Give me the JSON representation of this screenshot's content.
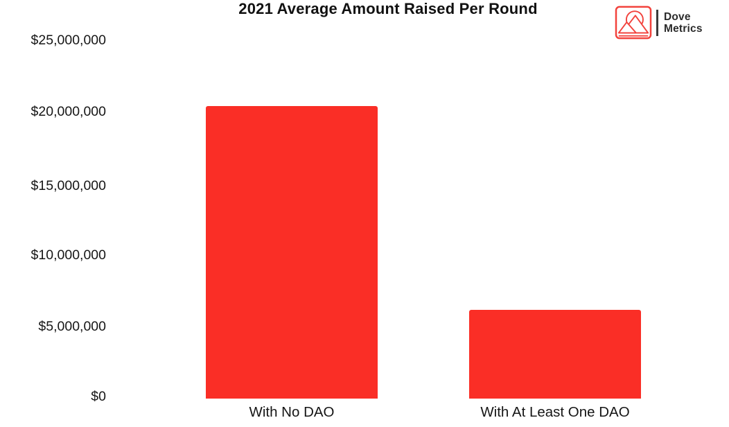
{
  "logo": {
    "name": "Dove Metrics",
    "line1": "Dove",
    "line2": "Metrics",
    "icon": "mountain-sun-logo-icon",
    "accent_color": "#f2423c",
    "text_color": "#2b2b2b"
  },
  "chart_data": {
    "type": "bar",
    "title": "2021 Average Amount Raised Per Round",
    "categories": [
      "With No DAO",
      "With At Least One DAO"
    ],
    "values": [
      20400000,
      6200000
    ],
    "y_tick_labels": [
      "$25,000,000",
      "$20,000,000",
      "$15,000,000",
      "$10,000,000",
      "$5,000,000",
      "$0"
    ],
    "y_tick_values": [
      25000000,
      20000000,
      15000000,
      10000000,
      5000000,
      0
    ],
    "ylim": [
      0,
      25000000
    ],
    "xlabel": "",
    "ylabel": "",
    "grid": false,
    "legend": false,
    "bar_color": "#fa2e26",
    "background": "#ffffff"
  }
}
